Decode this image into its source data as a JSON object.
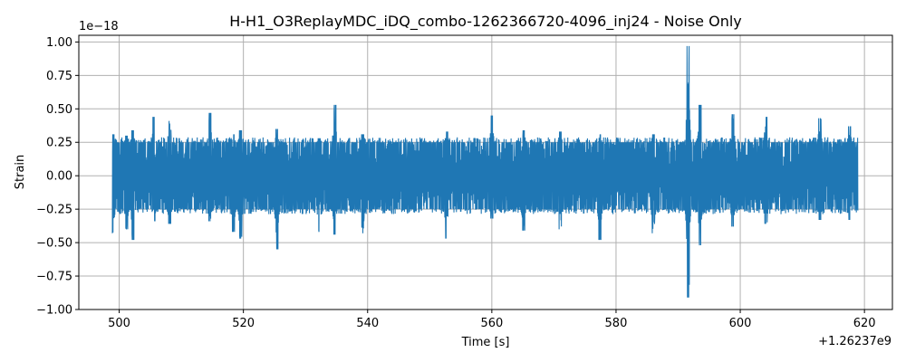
{
  "chart_data": {
    "type": "line",
    "title": "H-H1_O3ReplayMDC_iDQ_combo-1262366720-4096_inj24 - Noise Only",
    "xlabel": "Time [s]",
    "ylabel": "Strain",
    "x_offset_label": "+1.26237e9",
    "y_scale_label": "1e−18",
    "xlim": [
      493.5,
      624.5
    ],
    "ylim": [
      -1.0,
      1.05
    ],
    "x_ticks": [
      500,
      520,
      540,
      560,
      580,
      600,
      620
    ],
    "x_tick_labels": [
      "500",
      "520",
      "540",
      "560",
      "580",
      "600",
      "620"
    ],
    "y_ticks": [
      -1.0,
      -0.75,
      -0.5,
      -0.25,
      0.0,
      0.25,
      0.5,
      0.75,
      1.0
    ],
    "y_tick_labels": [
      "−1.00",
      "−0.75",
      "−0.50",
      "−0.25",
      "0.00",
      "0.25",
      "0.50",
      "0.75",
      "1.00"
    ],
    "grid": true,
    "series": [
      {
        "color": "#1f77b4",
        "x_range": [
          498.9,
          618.9
        ],
        "typical_amplitude": 0.25,
        "envelope_points": [
          [
            499.0,
            0.31,
            -0.43
          ],
          [
            501.2,
            0.3,
            -0.4
          ],
          [
            502.2,
            0.34,
            -0.48
          ],
          [
            505.6,
            0.44,
            -0.34
          ],
          [
            508.1,
            0.41,
            -0.36
          ],
          [
            514.6,
            0.47,
            -0.34
          ],
          [
            518.4,
            0.31,
            -0.42
          ],
          [
            519.5,
            0.34,
            -0.47
          ],
          [
            525.4,
            0.35,
            -0.55
          ],
          [
            532.2,
            0.28,
            -0.42
          ],
          [
            534.7,
            0.53,
            -0.44
          ],
          [
            539.2,
            0.31,
            -0.43
          ],
          [
            552.7,
            0.33,
            -0.47
          ],
          [
            560.0,
            0.45,
            -0.32
          ],
          [
            565.1,
            0.34,
            -0.41
          ],
          [
            571.0,
            0.33,
            -0.4
          ],
          [
            577.4,
            0.31,
            -0.48
          ],
          [
            586.0,
            0.31,
            -0.43
          ],
          [
            591.6,
            0.97,
            -0.91
          ],
          [
            593.5,
            0.53,
            -0.52
          ],
          [
            598.8,
            0.46,
            -0.38
          ],
          [
            604.1,
            0.44,
            -0.36
          ],
          [
            612.8,
            0.43,
            -0.33
          ],
          [
            617.6,
            0.37,
            -0.33
          ]
        ]
      }
    ]
  }
}
